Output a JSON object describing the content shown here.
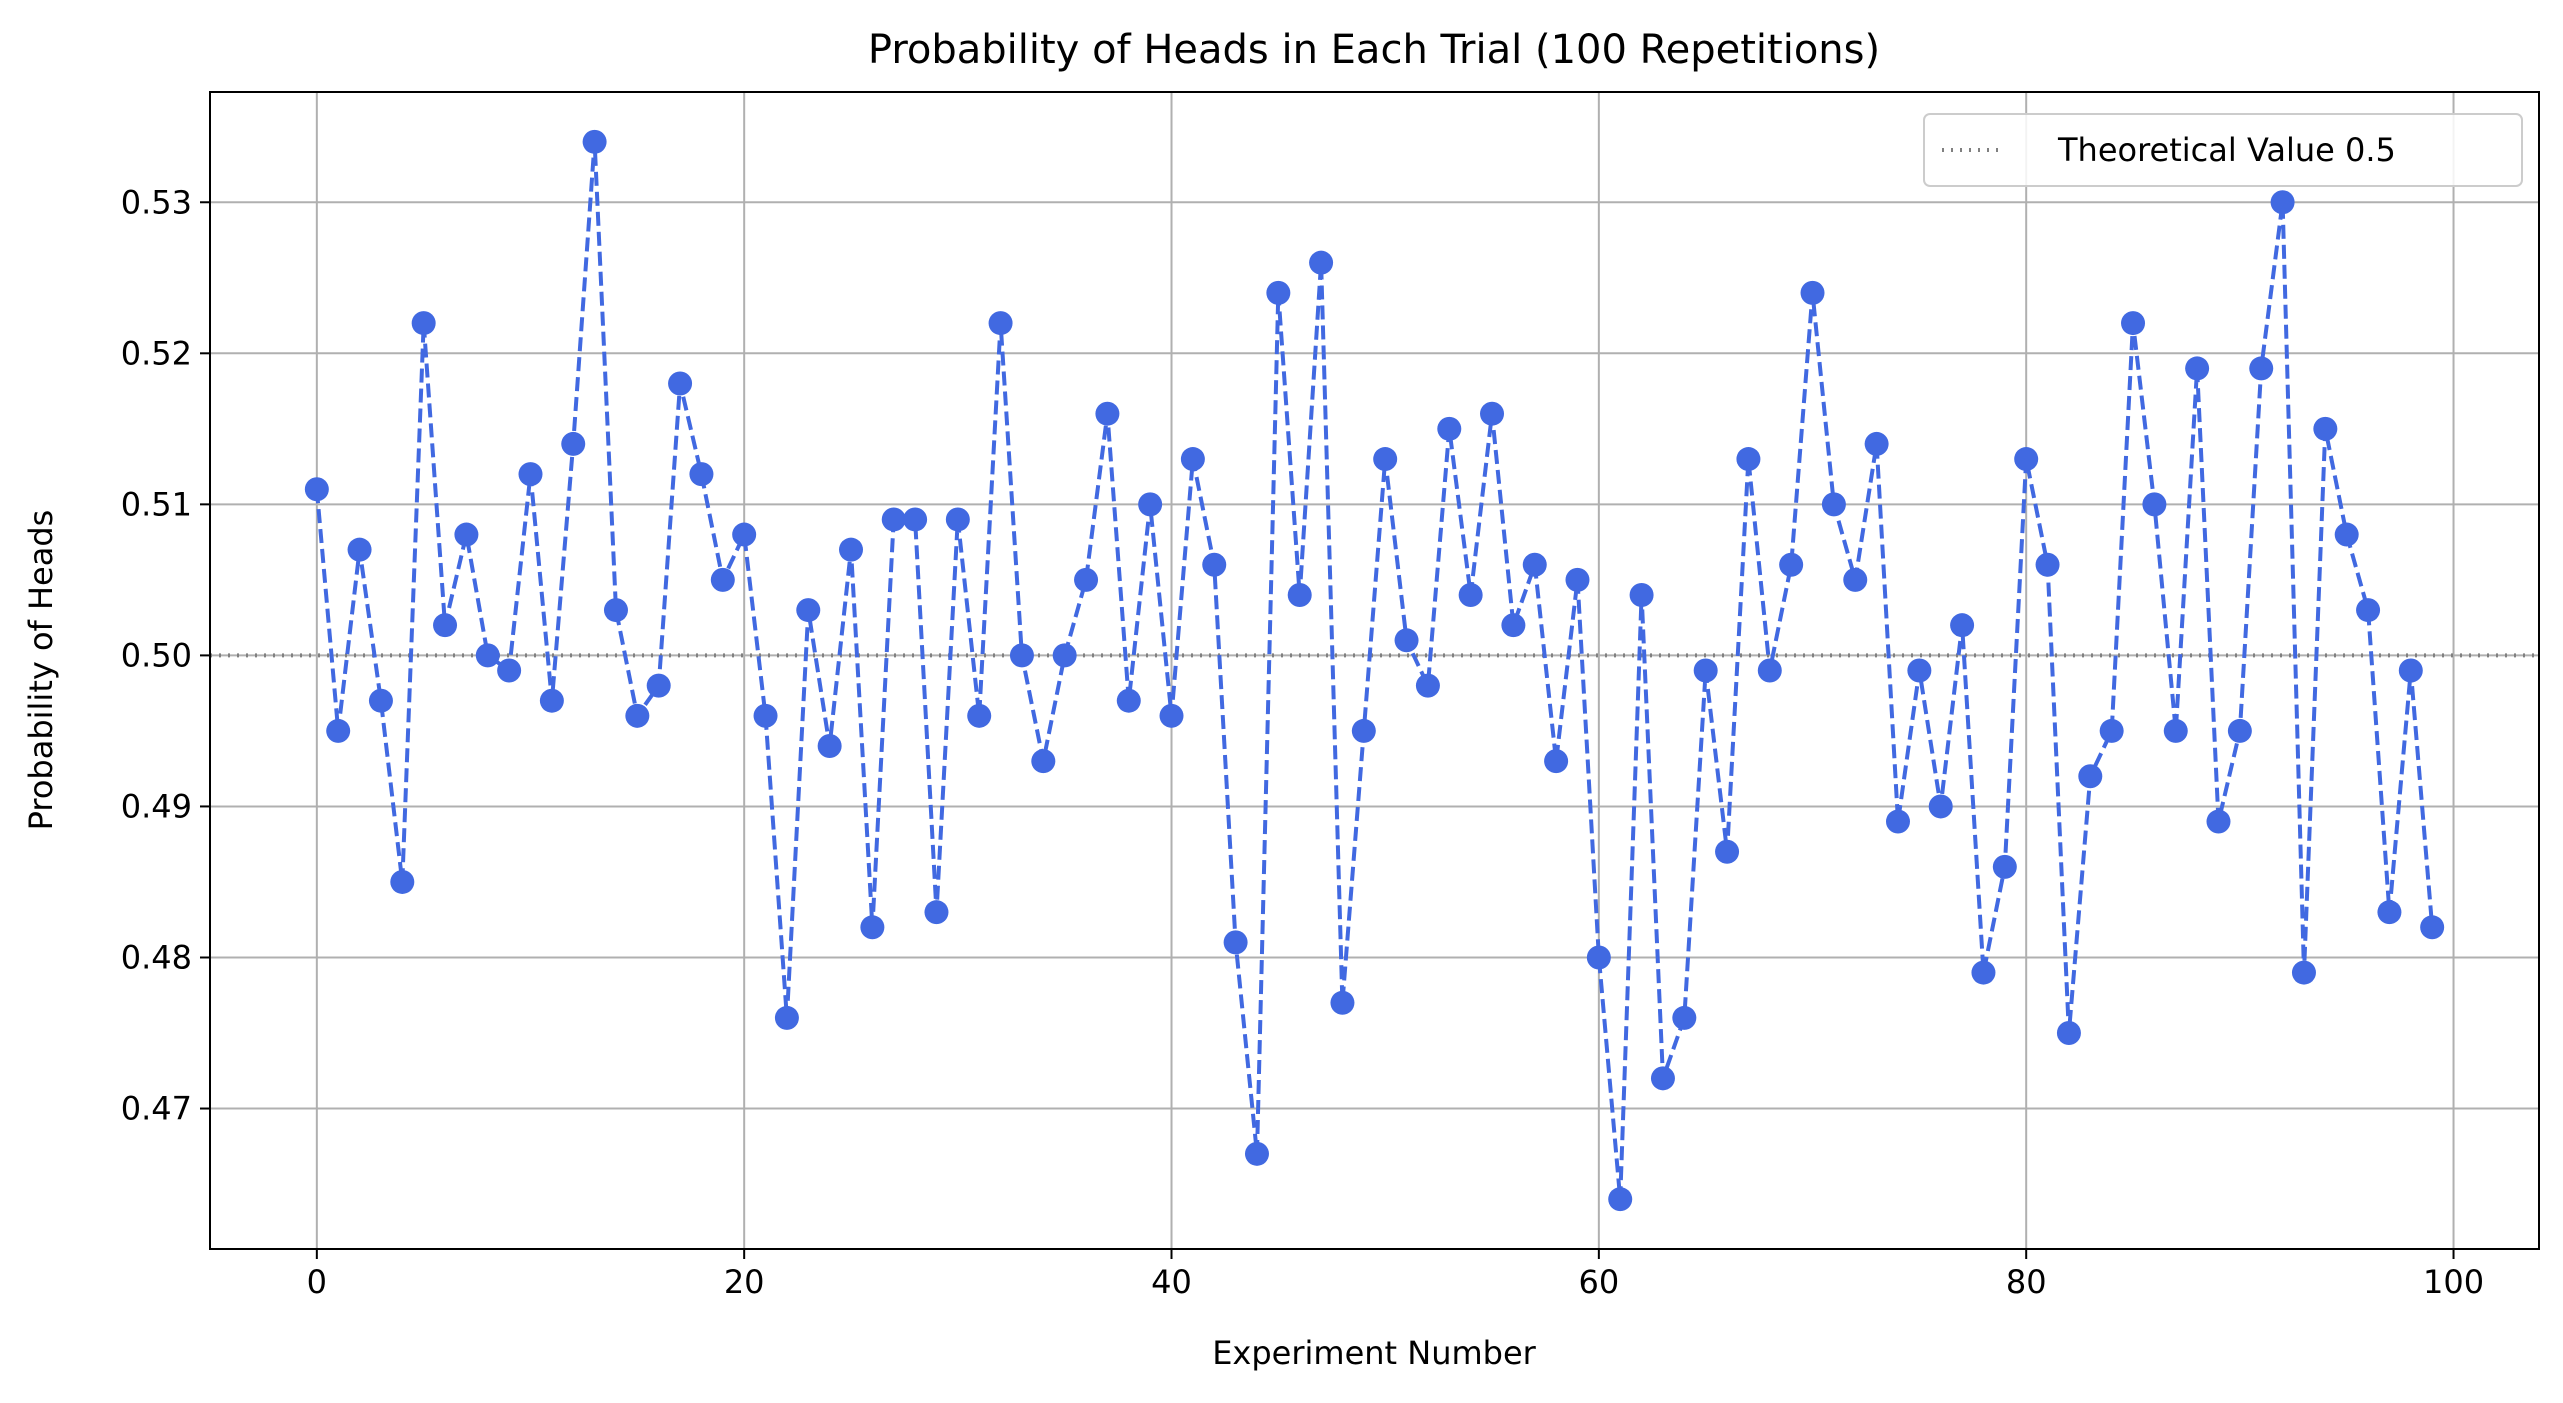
{
  "chart_data": {
    "type": "line",
    "title": "Probability of Heads in Each Trial (100 Repetitions)",
    "xlabel": "Experiment Number",
    "ylabel": "Probability of Heads",
    "xlim": [
      -5,
      104
    ],
    "ylim": [
      0.4607,
      0.5373
    ],
    "xticks": [
      0,
      20,
      40,
      60,
      80,
      100
    ],
    "yticks": [
      0.47,
      0.48,
      0.49,
      0.5,
      0.51,
      0.52,
      0.53
    ],
    "grid": true,
    "legend_position": "top-right",
    "series": [
      {
        "name": "",
        "color": "#4169E1",
        "line_style": "dashed",
        "marker": "circle",
        "x": [
          0,
          1,
          2,
          3,
          4,
          5,
          6,
          7,
          8,
          9,
          10,
          11,
          12,
          13,
          14,
          15,
          16,
          17,
          18,
          19,
          20,
          21,
          22,
          23,
          24,
          25,
          26,
          27,
          28,
          29,
          30,
          31,
          32,
          33,
          34,
          35,
          36,
          37,
          38,
          39,
          40,
          41,
          42,
          43,
          44,
          45,
          46,
          47,
          48,
          49,
          50,
          51,
          52,
          53,
          54,
          55,
          56,
          57,
          58,
          59,
          60,
          61,
          62,
          63,
          64,
          65,
          66,
          67,
          68,
          69,
          70,
          71,
          72,
          73,
          74,
          75,
          76,
          77,
          78,
          79,
          80,
          81,
          82,
          83,
          84,
          85,
          86,
          87,
          88,
          89,
          90,
          91,
          92,
          93,
          94,
          95,
          96,
          97,
          98,
          99
        ],
        "values": [
          0.511,
          0.495,
          0.507,
          0.497,
          0.485,
          0.522,
          0.502,
          0.508,
          0.5,
          0.499,
          0.512,
          0.497,
          0.514,
          0.534,
          0.503,
          0.496,
          0.498,
          0.518,
          0.512,
          0.505,
          0.508,
          0.496,
          0.476,
          0.503,
          0.494,
          0.507,
          0.482,
          0.509,
          0.509,
          0.483,
          0.509,
          0.496,
          0.522,
          0.5,
          0.493,
          0.5,
          0.505,
          0.516,
          0.497,
          0.51,
          0.496,
          0.513,
          0.506,
          0.481,
          0.467,
          0.524,
          0.504,
          0.526,
          0.477,
          0.495,
          0.513,
          0.501,
          0.498,
          0.515,
          0.504,
          0.516,
          0.502,
          0.506,
          0.493,
          0.505,
          0.48,
          0.464,
          0.504,
          0.472,
          0.476,
          0.499,
          0.487,
          0.513,
          0.499,
          0.506,
          0.524,
          0.51,
          0.505,
          0.514,
          0.489,
          0.499,
          0.49,
          0.502,
          0.479,
          0.486,
          0.513,
          0.506,
          0.475,
          0.492,
          0.495,
          0.522,
          0.51,
          0.495,
          0.519,
          0.489,
          0.495,
          0.519,
          0.53,
          0.479,
          0.515,
          0.508,
          0.503,
          0.483,
          0.499,
          0.482
        ]
      }
    ],
    "reference_line": {
      "label": "Theoretical Value 0.5",
      "y": 0.5,
      "color": "#808080",
      "line_style": "dotted"
    }
  }
}
